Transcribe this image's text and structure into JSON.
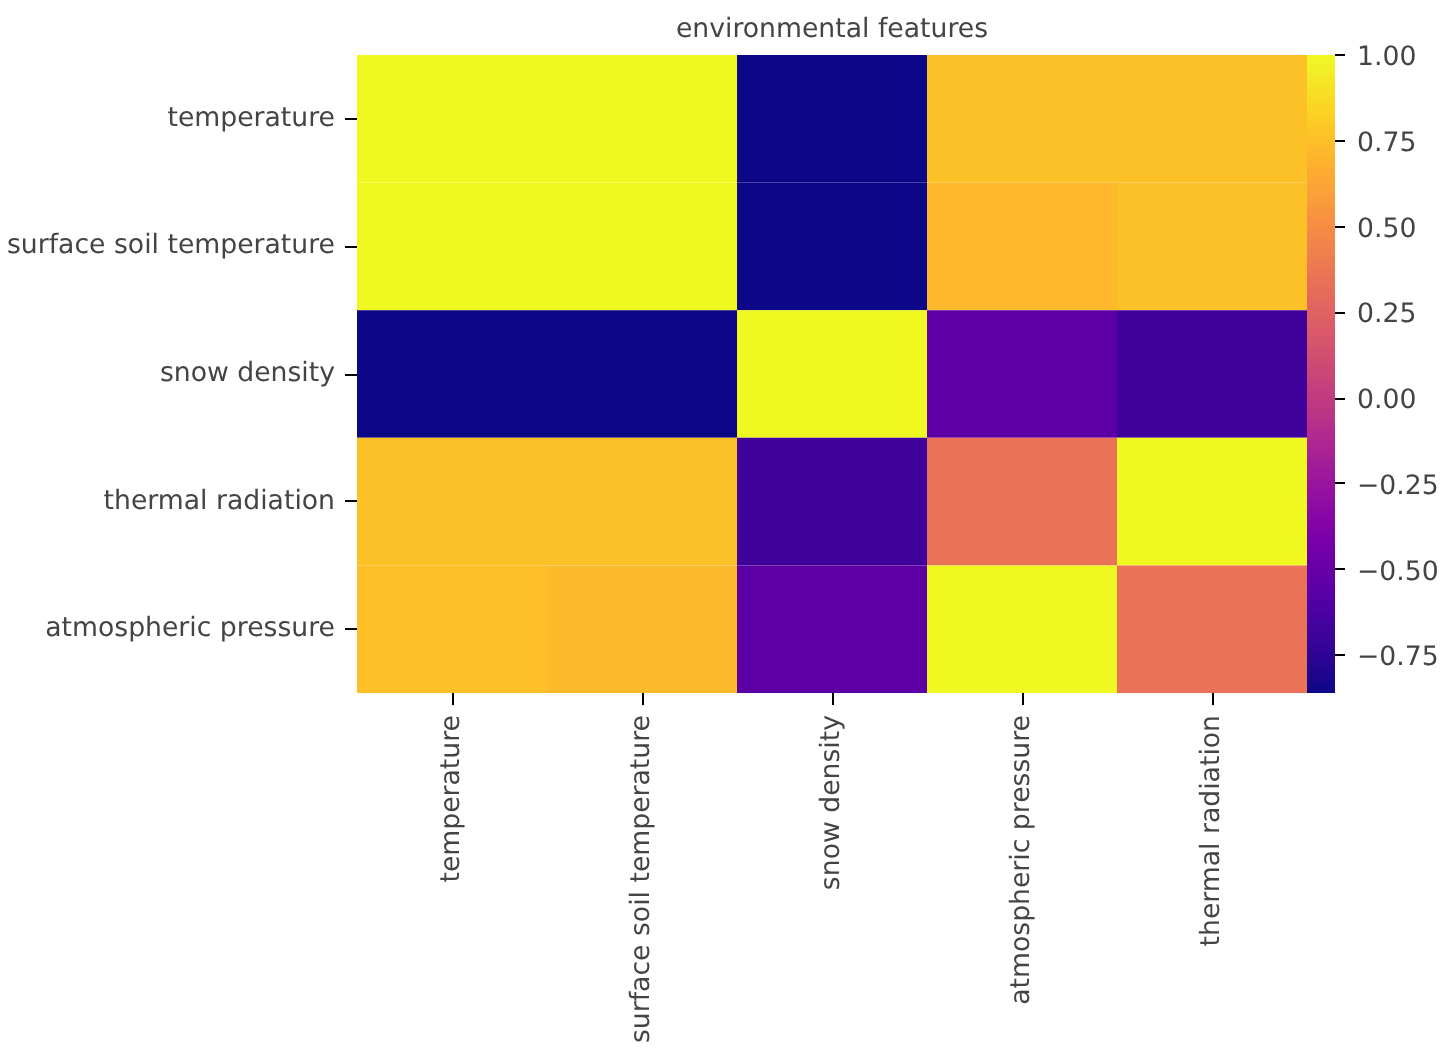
{
  "chart_data": {
    "type": "heatmap",
    "title": "environmental features",
    "categories": [
      "temperature",
      "surface soil temperature",
      "snow density",
      "atmospheric pressure",
      "thermal radiation"
    ],
    "y_categories": [
      "temperature",
      "surface soil temperature",
      "snow density",
      "thermal radiation",
      "atmospheric pressure"
    ],
    "cells": [
      [
        1.0,
        1.0,
        -0.86,
        0.76,
        0.76
      ],
      [
        1.0,
        1.0,
        -0.86,
        0.72,
        0.76
      ],
      [
        -0.86,
        -0.86,
        1.0,
        -0.55,
        -0.68
      ],
      [
        0.76,
        0.76,
        -0.68,
        0.34,
        1.0
      ],
      [
        0.75,
        0.73,
        -0.55,
        1.0,
        0.34
      ]
    ],
    "clim": [
      -0.86,
      1.0
    ],
    "cticks": [
      {
        "value": 1.0,
        "label": "1.00"
      },
      {
        "value": 0.75,
        "label": "0.75"
      },
      {
        "value": 0.5,
        "label": "0.50"
      },
      {
        "value": 0.25,
        "label": "0.25"
      },
      {
        "value": 0.0,
        "label": "0.00"
      },
      {
        "value": -0.25,
        "label": "−0.25"
      },
      {
        "value": -0.5,
        "label": "−0.50"
      },
      {
        "value": -0.75,
        "label": "−0.75"
      }
    ]
  }
}
